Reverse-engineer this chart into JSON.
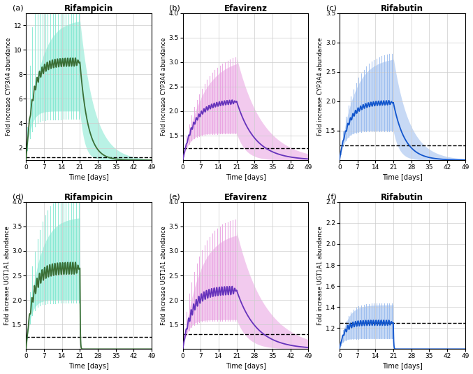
{
  "panels": [
    {
      "label": "(a)",
      "title": "Rifampicin",
      "ylabel": "Fold increase CYP3A4 abundance",
      "ylim": [
        1,
        13
      ],
      "yticks": [
        2,
        4,
        6,
        8,
        10,
        12
      ],
      "drug_end": 21,
      "total_days": 49,
      "line_color": "#3a6e35",
      "fill_color": "#80e8d0",
      "peak_mean": 9.0,
      "peak_upper": 12.5,
      "peak_lower": 5.0,
      "onset_rate_mean": 0.38,
      "washout_rate_mean": 0.32,
      "onset_rate_upper": 0.2,
      "washout_rate_upper": 0.18,
      "onset_rate_lower": 0.55,
      "washout_rate_lower": 0.55,
      "osc_amp": 0.55,
      "dashed_y": 1.25,
      "row": 0,
      "col": 0
    },
    {
      "label": "(b)",
      "title": "Efavirenz",
      "ylabel": "Fold increase CYP3A4 abundance",
      "ylim": [
        1,
        4
      ],
      "yticks": [
        1.5,
        2.0,
        2.5,
        3.0,
        3.5,
        4.0
      ],
      "drug_end": 21,
      "total_days": 49,
      "line_color": "#6633bb",
      "fill_color": "#e8a0e0",
      "peak_mean": 2.2,
      "peak_upper": 3.1,
      "peak_lower": 1.55,
      "onset_rate_mean": 0.22,
      "washout_rate_mean": 0.14,
      "onset_rate_upper": 0.13,
      "washout_rate_upper": 0.1,
      "onset_rate_lower": 0.38,
      "washout_rate_lower": 0.28,
      "osc_amp": 0.07,
      "dashed_y": 1.25,
      "row": 0,
      "col": 1
    },
    {
      "label": "(c)",
      "title": "Rifabutin",
      "ylabel": "Fold increase CYP3A4 abundance",
      "ylim": [
        1,
        3.5
      ],
      "yticks": [
        1.5,
        2.0,
        2.5,
        3.0,
        3.5
      ],
      "drug_end": 21,
      "total_days": 49,
      "line_color": "#1155cc",
      "fill_color": "#99bbee",
      "peak_mean": 1.98,
      "peak_upper": 2.75,
      "peak_lower": 1.5,
      "onset_rate_mean": 0.28,
      "washout_rate_mean": 0.22,
      "onset_rate_upper": 0.18,
      "washout_rate_upper": 0.16,
      "onset_rate_lower": 0.45,
      "washout_rate_lower": 0.42,
      "osc_amp": 0.06,
      "dashed_y": 1.25,
      "row": 0,
      "col": 2
    },
    {
      "label": "(d)",
      "title": "Rifampicin",
      "ylabel": "Fold increase UGT1A1 abundance",
      "ylim": [
        1,
        4
      ],
      "yticks": [
        1.5,
        2.0,
        2.5,
        3.0,
        3.5,
        4.0
      ],
      "drug_end": 21,
      "total_days": 49,
      "line_color": "#3a6e35",
      "fill_color": "#80e8d0",
      "peak_mean": 2.65,
      "peak_upper": 3.7,
      "peak_lower": 2.0,
      "onset_rate_mean": 0.38,
      "washout_rate_mean": 8.0,
      "onset_rate_upper": 0.22,
      "washout_rate_upper": 8.0,
      "onset_rate_lower": 0.55,
      "washout_rate_lower": 8.0,
      "osc_amp": 0.2,
      "dashed_y": 1.25,
      "row": 1,
      "col": 0
    },
    {
      "label": "(e)",
      "title": "Efavirenz",
      "ylabel": "Fold increase UGT1A1 abundance",
      "ylim": [
        1,
        4
      ],
      "yticks": [
        1.5,
        2.0,
        2.5,
        3.0,
        3.5,
        4.0
      ],
      "drug_end": 21,
      "total_days": 49,
      "line_color": "#6633bb",
      "fill_color": "#e8a0e0",
      "peak_mean": 2.2,
      "peak_upper": 3.4,
      "peak_lower": 1.6,
      "onset_rate_mean": 0.28,
      "washout_rate_mean": 0.13,
      "onset_rate_upper": 0.16,
      "washout_rate_upper": 0.09,
      "onset_rate_lower": 0.45,
      "washout_rate_lower": 0.22,
      "osc_amp": 0.14,
      "dashed_y": 1.3,
      "row": 1,
      "col": 1
    },
    {
      "label": "(f)",
      "title": "Rifabutin",
      "ylabel": "Fold increase UGT1A1 abundance",
      "ylim": [
        1,
        2.4
      ],
      "yticks": [
        1.2,
        1.4,
        1.6,
        1.8,
        2.0,
        2.2,
        2.4
      ],
      "drug_end": 21,
      "total_days": 49,
      "line_color": "#1155cc",
      "fill_color": "#99bbee",
      "peak_mean": 1.25,
      "peak_upper": 1.42,
      "peak_lower": 1.1,
      "onset_rate_mean": 0.5,
      "washout_rate_mean": 8.0,
      "onset_rate_upper": 0.35,
      "washout_rate_upper": 8.0,
      "onset_rate_lower": 0.8,
      "washout_rate_lower": 8.0,
      "osc_amp": 0.04,
      "dashed_y": 1.25,
      "row": 1,
      "col": 2
    }
  ],
  "xlabel": "Time [days]",
  "xticks": [
    0,
    7,
    14,
    21,
    28,
    35,
    42,
    49
  ],
  "bgcolor": "white",
  "grid_color": "#cccccc"
}
